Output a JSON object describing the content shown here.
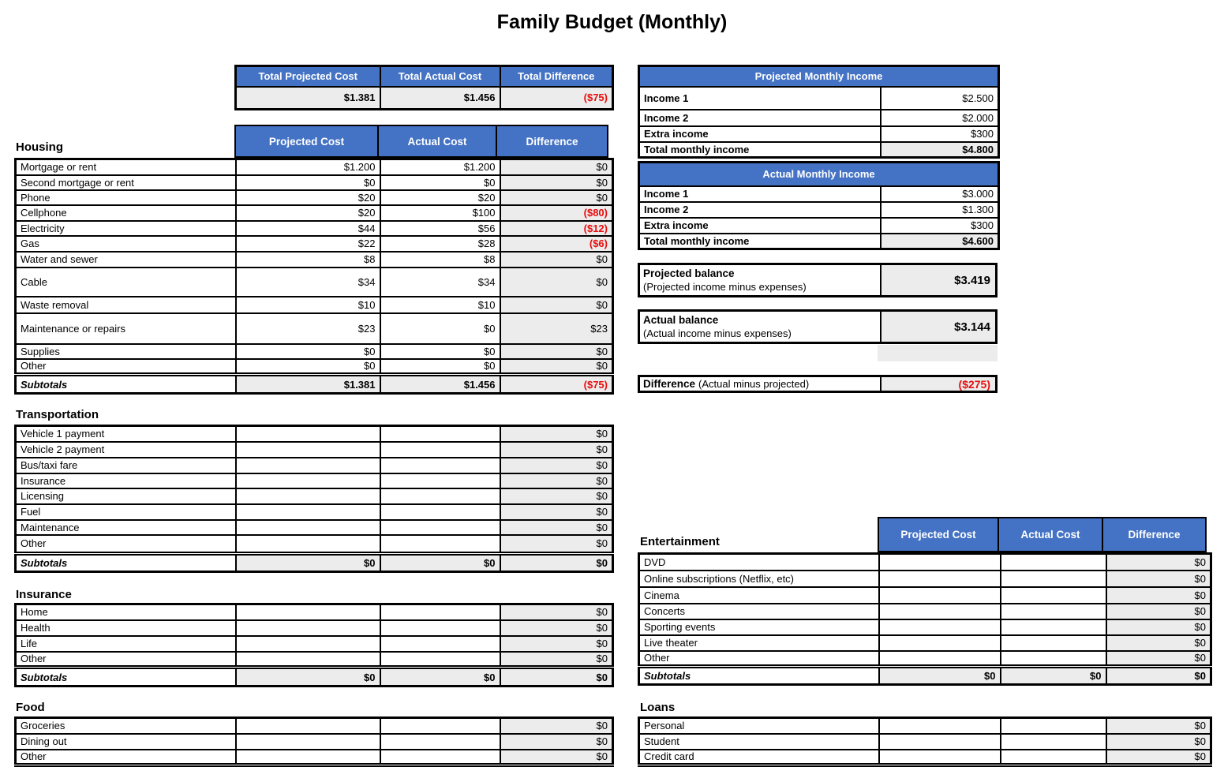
{
  "title": "Family Budget (Monthly)",
  "colors": {
    "header_blue": "#4472C4",
    "header_text": "#FFFFFF",
    "shaded_cell": "#ECECEC",
    "negative_red": "#E90D0D"
  },
  "cost_columns": [
    "Projected Cost",
    "Actual Cost",
    "Difference"
  ],
  "summary": {
    "headers": [
      "Total Projected Cost",
      "Total Actual Cost",
      "Total Difference"
    ],
    "values": [
      {
        "text": "$1.381",
        "negative": false
      },
      {
        "text": "$1.456",
        "negative": false
      },
      {
        "text": "($75)",
        "negative": true
      }
    ]
  },
  "sections": {
    "housing": {
      "title": "Housing",
      "rows": [
        {
          "label": "Mortgage or rent",
          "projected": "$1.200",
          "actual": "$1.200",
          "difference": "$0",
          "negative": false
        },
        {
          "label": "Second mortgage or rent",
          "projected": "$0",
          "actual": "$0",
          "difference": "$0",
          "negative": false
        },
        {
          "label": "Phone",
          "projected": "$20",
          "actual": "$20",
          "difference": "$0",
          "negative": false
        },
        {
          "label": "Cellphone",
          "projected": "$20",
          "actual": "$100",
          "difference": "($80)",
          "negative": true
        },
        {
          "label": "Electricity",
          "projected": "$44",
          "actual": "$56",
          "difference": "($12)",
          "negative": true
        },
        {
          "label": "Gas",
          "projected": "$22",
          "actual": "$28",
          "difference": "($6)",
          "negative": true
        },
        {
          "label": "Water and sewer",
          "projected": "$8",
          "actual": "$8",
          "difference": "$0",
          "negative": false
        },
        {
          "label": "Cable",
          "projected": "$34",
          "actual": "$34",
          "difference": "$0",
          "negative": false
        },
        {
          "label": "Waste removal",
          "projected": "$10",
          "actual": "$10",
          "difference": "$0",
          "negative": false
        },
        {
          "label": "Maintenance or repairs",
          "projected": "$23",
          "actual": "$0",
          "difference": "$23",
          "negative": false
        },
        {
          "label": "Supplies",
          "projected": "$0",
          "actual": "$0",
          "difference": "$0",
          "negative": false
        },
        {
          "label": "Other",
          "projected": "$0",
          "actual": "$0",
          "difference": "$0",
          "negative": false
        }
      ],
      "subtotals": {
        "label": "Subtotals",
        "projected": "$1.381",
        "actual": "$1.456",
        "difference": "($75)",
        "negative": true
      }
    },
    "transportation": {
      "title": "Transportation",
      "rows": [
        {
          "label": "Vehicle 1 payment",
          "projected": "",
          "actual": "",
          "difference": "$0",
          "negative": false
        },
        {
          "label": "Vehicle 2 payment",
          "projected": "",
          "actual": "",
          "difference": "$0",
          "negative": false
        },
        {
          "label": "Bus/taxi fare",
          "projected": "",
          "actual": "",
          "difference": "$0",
          "negative": false
        },
        {
          "label": "Insurance",
          "projected": "",
          "actual": "",
          "difference": "$0",
          "negative": false
        },
        {
          "label": "Licensing",
          "projected": "",
          "actual": "",
          "difference": "$0",
          "negative": false
        },
        {
          "label": "Fuel",
          "projected": "",
          "actual": "",
          "difference": "$0",
          "negative": false
        },
        {
          "label": "Maintenance",
          "projected": "",
          "actual": "",
          "difference": "$0",
          "negative": false
        },
        {
          "label": "Other",
          "projected": "",
          "actual": "",
          "difference": "$0",
          "negative": false
        }
      ],
      "subtotals": {
        "label": "Subtotals",
        "projected": "$0",
        "actual": "$0",
        "difference": "$0",
        "negative": false
      }
    },
    "insurance": {
      "title": "Insurance",
      "rows": [
        {
          "label": "Home",
          "projected": "",
          "actual": "",
          "difference": "$0",
          "negative": false
        },
        {
          "label": "Health",
          "projected": "",
          "actual": "",
          "difference": "$0",
          "negative": false
        },
        {
          "label": "Life",
          "projected": "",
          "actual": "",
          "difference": "$0",
          "negative": false
        },
        {
          "label": "Other",
          "projected": "",
          "actual": "",
          "difference": "$0",
          "negative": false
        }
      ],
      "subtotals": {
        "label": "Subtotals",
        "projected": "$0",
        "actual": "$0",
        "difference": "$0",
        "negative": false
      }
    },
    "food": {
      "title": "Food",
      "rows": [
        {
          "label": "Groceries",
          "projected": "",
          "actual": "",
          "difference": "$0",
          "negative": false
        },
        {
          "label": "Dining out",
          "projected": "",
          "actual": "",
          "difference": "$0",
          "negative": false
        },
        {
          "label": "Other",
          "projected": "",
          "actual": "",
          "difference": "$0",
          "negative": false
        }
      ],
      "subtotals": null
    },
    "entertainment": {
      "title": "Entertainment",
      "rows": [
        {
          "label": "DVD",
          "projected": "",
          "actual": "",
          "difference": "$0",
          "negative": false
        },
        {
          "label": "Online subscriptions (Netflix, etc)",
          "projected": "",
          "actual": "",
          "difference": "$0",
          "negative": false
        },
        {
          "label": "Cinema",
          "projected": "",
          "actual": "",
          "difference": "$0",
          "negative": false
        },
        {
          "label": "Concerts",
          "projected": "",
          "actual": "",
          "difference": "$0",
          "negative": false
        },
        {
          "label": "Sporting events",
          "projected": "",
          "actual": "",
          "difference": "$0",
          "negative": false
        },
        {
          "label": "Live theater",
          "projected": "",
          "actual": "",
          "difference": "$0",
          "negative": false
        },
        {
          "label": "Other",
          "projected": "",
          "actual": "",
          "difference": "$0",
          "negative": false
        }
      ],
      "subtotals": {
        "label": "Subtotals",
        "projected": "$0",
        "actual": "$0",
        "difference": "$0",
        "negative": false
      }
    },
    "loans": {
      "title": "Loans",
      "rows": [
        {
          "label": "Personal",
          "projected": "",
          "actual": "",
          "difference": "$0",
          "negative": false
        },
        {
          "label": "Student",
          "projected": "",
          "actual": "",
          "difference": "$0",
          "negative": false
        },
        {
          "label": "Credit card",
          "projected": "",
          "actual": "",
          "difference": "$0",
          "negative": false
        }
      ],
      "subtotals": null
    }
  },
  "income": {
    "projected": {
      "title": "Projected Monthly Income",
      "rows": [
        {
          "label": "Income 1",
          "value": "$2.500",
          "total": false
        },
        {
          "label": "Income 2",
          "value": "$2.000",
          "total": false
        },
        {
          "label": "Extra income",
          "value": "$300",
          "total": false
        },
        {
          "label": "Total monthly income",
          "value": "$4.800",
          "total": true
        }
      ]
    },
    "actual": {
      "title": "Actual Monthly Income",
      "rows": [
        {
          "label": "Income 1",
          "value": "$3.000",
          "total": false
        },
        {
          "label": "Income 2",
          "value": "$1.300",
          "total": false
        },
        {
          "label": "Extra income",
          "value": "$300",
          "total": false
        },
        {
          "label": "Total monthly income",
          "value": "$4.600",
          "total": true
        }
      ]
    }
  },
  "balances": [
    {
      "label": "Projected balance",
      "sub": "(Projected income minus expenses)",
      "value": "$3.419"
    },
    {
      "label": "Actual balance",
      "sub": "(Actual income minus expenses)",
      "value": "$3.144"
    }
  ],
  "difference_row": {
    "label": "Difference",
    "sub": "(Actual minus projected)",
    "value": "($275)",
    "negative": true
  }
}
